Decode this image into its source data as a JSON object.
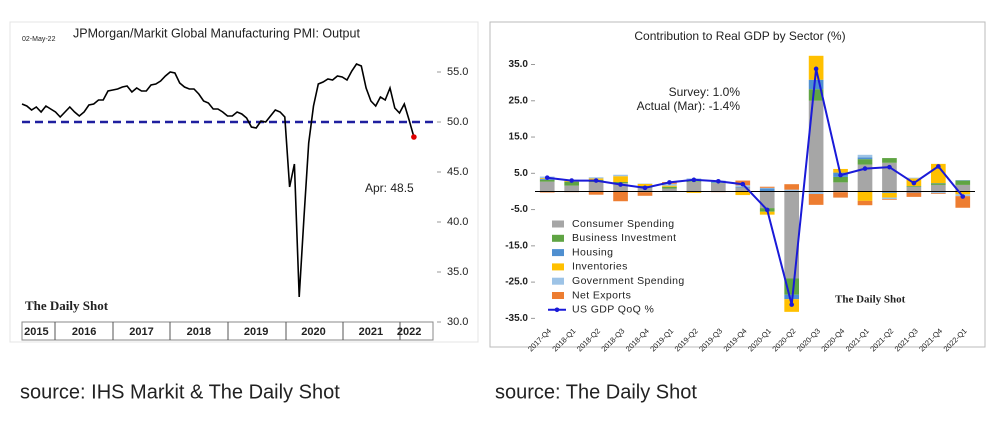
{
  "chart_data": [
    {
      "type": "line",
      "title": "JPMorgan/Markit Global Manufacturing PMI: Output",
      "date": "02-May-22",
      "annotation": "Apr:    48.5",
      "watermark": "The Daily Shot",
      "source": "source: IHS Markit & The Daily Shot",
      "color": "#000000",
      "reference_line": 50,
      "reference_color": "#1f1f9f",
      "last_point_color": "#e00000",
      "categories": [
        null,
        null,
        null,
        "2015",
        null,
        null,
        null,
        null,
        null,
        null,
        null,
        null,
        null,
        "2016",
        null,
        null,
        null,
        null,
        null,
        null,
        null,
        null,
        null,
        null,
        null,
        "2017",
        null,
        null,
        null,
        null,
        null,
        null,
        null,
        null,
        null,
        null,
        null,
        "2018",
        null,
        null,
        null,
        null,
        null,
        null,
        null,
        null,
        null,
        null,
        null,
        "2019",
        null,
        null,
        null,
        null,
        null,
        null,
        null,
        null,
        null,
        null,
        null,
        "2020",
        null,
        null,
        null,
        null,
        null,
        null,
        null,
        null,
        null,
        null,
        null,
        "2021",
        null,
        null,
        null,
        null,
        null,
        null,
        null,
        "2022",
        null
      ],
      "values": [
        51.8,
        51.6,
        51.2,
        51.5,
        51.0,
        51.6,
        51.3,
        51.0,
        50.5,
        51.0,
        51.5,
        51.0,
        50.6,
        51.0,
        51.7,
        51.8,
        52.2,
        52.2,
        53.1,
        53.2,
        53.3,
        53.5,
        53.6,
        53.0,
        53.4,
        53.1,
        53.1,
        53.7,
        53.8,
        54.1,
        54.6,
        55.0,
        54.9,
        53.9,
        53.5,
        53.3,
        53.3,
        52.8,
        52.1,
        51.9,
        51.3,
        51.3,
        51.0,
        50.6,
        50.6,
        51.0,
        50.8,
        50.4,
        49.5,
        49.4,
        50.1,
        50.0,
        50.6,
        51.2,
        51.0,
        50.5,
        43.5,
        45.8,
        32.5,
        40.5,
        47.9,
        51.6,
        53.8,
        54.0,
        54.3,
        54.2,
        54.6,
        54.5,
        54.2,
        55.1,
        55.8,
        55.6,
        53.4,
        52.1,
        51.6,
        52.5,
        52.2,
        53.4,
        51.4,
        50.9,
        51.8,
        50.2,
        48.5
      ],
      "ylim": [
        30,
        56.5
      ],
      "yticks": [
        {
          "value": 30,
          "label": "30.0"
        },
        {
          "value": 35,
          "label": "35.0"
        },
        {
          "value": 40,
          "label": "40.0"
        },
        {
          "value": 45,
          "label": "45.0"
        },
        {
          "value": 50,
          "label": "50.0"
        },
        {
          "value": 55,
          "label": "55.0"
        }
      ],
      "grid": false
    },
    {
      "type": "bar",
      "stacked": true,
      "title": "Contribution to Real GDP by Sector (%)",
      "annotations": [
        "Survey:  1.0%",
        "Actual (Mar):  -1.4%"
      ],
      "watermark": "The Daily Shot",
      "source": "source: The Daily Shot",
      "categories": [
        "2017-Q4",
        "2018-Q1",
        "2018-Q2",
        "2018-Q3",
        "2018-Q4",
        "2019-Q1",
        "2019-Q2",
        "2019-Q3",
        "2019-Q4",
        "2020-Q1",
        "2020-Q2",
        "2020-Q3",
        "2020-Q4",
        "2021-Q1",
        "2021-Q2",
        "2021-Q3",
        "2021-Q4",
        "2022-Q1"
      ],
      "series": [
        {
          "name": "Consumer Spending",
          "color": "#a6a6a6",
          "values": [
            2.7,
            1.6,
            2.6,
            2.3,
            1.0,
            0.8,
            2.6,
            2.3,
            1.1,
            -4.6,
            -24.0,
            25.0,
            2.5,
            7.4,
            7.9,
            1.3,
            1.8,
            1.8
          ]
        },
        {
          "name": "Business Investment",
          "color": "#5fa443",
          "values": [
            0.5,
            1.1,
            0.6,
            0.3,
            0.5,
            0.5,
            0.2,
            0.1,
            0.0,
            -1.0,
            -4.5,
            3.2,
            1.5,
            1.5,
            1.3,
            0.2,
            0.4,
            1.2
          ]
        },
        {
          "name": "Housing",
          "color": "#4f8fd0",
          "values": [
            0.3,
            0.0,
            0.0,
            -0.1,
            -0.2,
            -0.1,
            -0.1,
            0.2,
            0.2,
            0.8,
            -1.2,
            2.6,
            1.2,
            0.5,
            -0.4,
            -0.3,
            0.1,
            0.1
          ]
        },
        {
          "name": "Inventories",
          "color": "#ffc000",
          "values": [
            0.2,
            0.2,
            0.4,
            1.6,
            0.6,
            0.3,
            -0.3,
            -0.1,
            -1.0,
            -0.8,
            -3.5,
            6.6,
            1.0,
            -2.6,
            -1.3,
            2.1,
            5.3,
            -0.8
          ]
        },
        {
          "name": "Government Spending",
          "color": "#9dc3e6",
          "values": [
            0.4,
            0.3,
            0.3,
            0.4,
            0.1,
            0.5,
            0.8,
            0.4,
            0.4,
            0.2,
            0.5,
            -0.7,
            -0.2,
            0.7,
            -0.4,
            0.2,
            -0.5,
            -0.5
          ]
        },
        {
          "name": "Net Exports",
          "color": "#ed7d31",
          "values": [
            -0.3,
            -0.2,
            -0.9,
            -2.6,
            -1.0,
            0.5,
            0.0,
            -0.1,
            1.3,
            0.3,
            1.5,
            -3.0,
            -1.5,
            -1.2,
            -0.2,
            -1.2,
            -0.2,
            -3.2
          ]
        },
        {
          "name": "US GDP QoQ %",
          "color": "#1a1ad8",
          "type": "line",
          "values": [
            3.8,
            3.0,
            3.0,
            1.9,
            1.0,
            2.5,
            3.2,
            2.8,
            2.0,
            -5.1,
            -31.2,
            33.8,
            4.5,
            6.3,
            6.7,
            2.3,
            6.9,
            -1.4
          ]
        }
      ],
      "ylim": [
        -36,
        39
      ],
      "yticks": [
        {
          "value": -35,
          "label": "-35.0"
        },
        {
          "value": -25,
          "label": "-25.0"
        },
        {
          "value": -15,
          "label": "-15.0"
        },
        {
          "value": -5,
          "label": "-5.0"
        },
        {
          "value": 5,
          "label": "5.0"
        },
        {
          "value": 15,
          "label": "15.0"
        },
        {
          "value": 25,
          "label": "25.0"
        },
        {
          "value": 35,
          "label": "35.0"
        }
      ],
      "legend": "lower-left",
      "grid": false
    }
  ]
}
